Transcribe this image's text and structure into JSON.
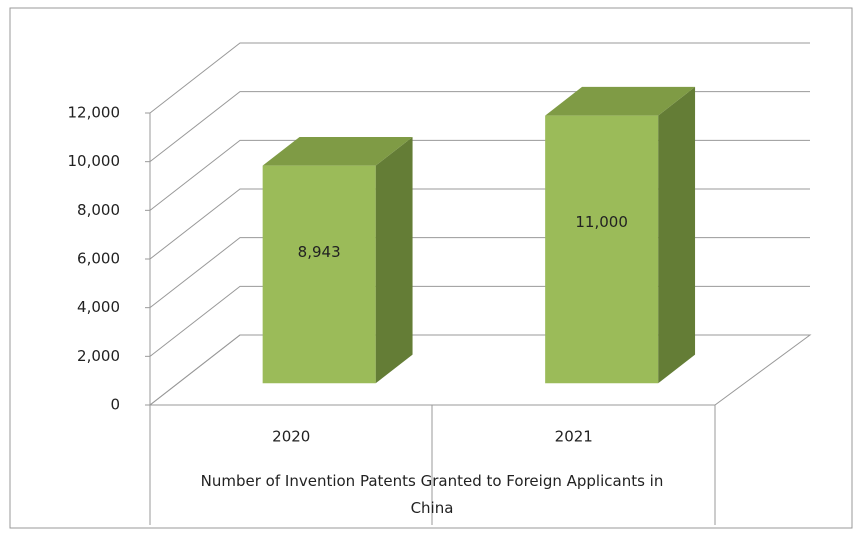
{
  "chart_data": {
    "type": "bar",
    "categories": [
      "2020",
      "2021"
    ],
    "values": [
      8943,
      11000
    ],
    "value_labels": [
      "8,943",
      "11,000"
    ],
    "color": "#9bbb59",
    "xlabel": "Number of Invention Patents Granted to Foreign Applicants in China",
    "ylim": [
      0,
      12000
    ],
    "yticks": [
      0,
      {
        "value": 2000,
        "label": "2,000"
      },
      {
        "value": 4000,
        "label": "4,000"
      },
      {
        "value": 6000,
        "label": "6,000"
      },
      {
        "value": 8000,
        "label": "8,000"
      },
      {
        "value": 10000,
        "label": "10,000"
      },
      {
        "value": 12000,
        "label": "12,000"
      }
    ],
    "grid": true
  }
}
